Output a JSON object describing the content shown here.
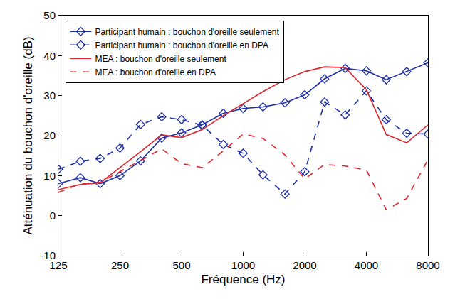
{
  "chart_data": {
    "type": "line",
    "x_label": "Fréquence (Hz)",
    "y_label": "Atténuation du bouchon d'oreille (dB)",
    "x": [
      125,
      160,
      200,
      250,
      315,
      400,
      500,
      630,
      800,
      1000,
      1250,
      1600,
      2000,
      2500,
      3150,
      4000,
      5000,
      6300,
      8000
    ],
    "series": [
      {
        "name": "Participant humain : bouchon d'oreille seulement",
        "color": "#1b2da6",
        "marker": "diamond",
        "line_style": "solid",
        "values": [
          8,
          9.5,
          8,
          10,
          13.7,
          19.4,
          20.7,
          22.7,
          25.6,
          26.8,
          27.2,
          28.2,
          30.2,
          34.2,
          36.8,
          36.2,
          34,
          36,
          38.2
        ]
      },
      {
        "name": "Participant humain : bouchon d'oreille en DPA",
        "color": "#1b2da6",
        "marker": "diamond",
        "line_style": "dash",
        "values": [
          11.6,
          13.6,
          14.3,
          16.9,
          22.8,
          24.7,
          24,
          22.6,
          17.8,
          15.6,
          10.2,
          5.4,
          11,
          28.4,
          25.2,
          31.2,
          24,
          20.6,
          20.4
        ]
      },
      {
        "name": "MEA : bouchon d'oreille seulement",
        "color": "#e0242b",
        "marker": "none",
        "line_style": "solid",
        "values": [
          6.5,
          7.8,
          8.2,
          12,
          16,
          20.2,
          19.5,
          21.5,
          25,
          28,
          31,
          34,
          36,
          37.2,
          37,
          31.5,
          20.3,
          18.2,
          22.7
        ]
      },
      {
        "name": "MEA : bouchon d'oreille en DPA",
        "color": "#e0242b",
        "marker": "none",
        "line_style": "dash",
        "values": [
          5.8,
          8,
          8.3,
          11,
          13.7,
          16.7,
          13,
          12,
          16.2,
          20.4,
          19.3,
          15.2,
          9.2,
          12.8,
          12.4,
          11.4,
          1.5,
          4.3,
          14
        ]
      }
    ],
    "xlim": [
      125,
      8000
    ],
    "xticks": [
      125,
      250,
      500,
      1000,
      2000,
      4000,
      8000
    ],
    "ylim": [
      -10,
      50
    ],
    "yticks": [
      -10,
      0,
      10,
      20,
      30,
      40,
      50
    ],
    "log": "x",
    "grid": false,
    "legend": "upper left"
  }
}
